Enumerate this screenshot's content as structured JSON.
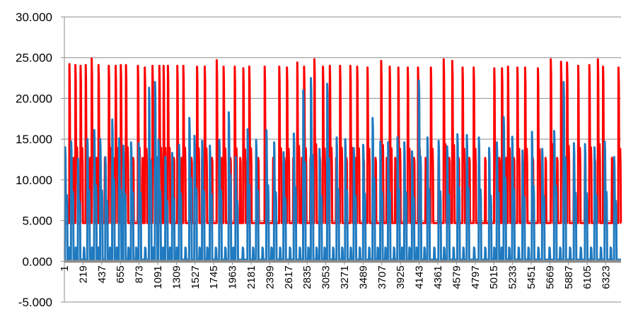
{
  "chart_data": {
    "type": "line",
    "title": "",
    "xlabel": "",
    "ylabel": "",
    "ylim": [
      -5,
      30
    ],
    "xlim": [
      1,
      6500
    ],
    "grid": "horizontal",
    "legend": "none",
    "y_ticks": [
      {
        "value": 30,
        "label": "30.000"
      },
      {
        "value": 25,
        "label": "25.000"
      },
      {
        "value": 20,
        "label": "20.000"
      },
      {
        "value": 15,
        "label": "15.000"
      },
      {
        "value": 10,
        "label": "10.000"
      },
      {
        "value": 5,
        "label": "5.000"
      },
      {
        "value": 0,
        "label": "0.000"
      },
      {
        "value": -5,
        "label": "-5.000"
      }
    ],
    "x_ticks": [
      "1",
      "219",
      "437",
      "655",
      "873",
      "1091",
      "1309",
      "1527",
      "1745",
      "1963",
      "2181",
      "2399",
      "2617",
      "2835",
      "3053",
      "3271",
      "3489",
      "3707",
      "3925",
      "4143",
      "4361",
      "4579",
      "4797",
      "5015",
      "5233",
      "5451",
      "5669",
      "5887",
      "6105",
      "6323"
    ],
    "series": [
      {
        "color": "#ff0000",
        "baseline": 4.7,
        "peaks": [
          [
            60,
            24.2
          ],
          [
            130,
            24.1
          ],
          [
            190,
            24.0
          ],
          [
            250,
            24.1
          ],
          [
            320,
            24.9
          ],
          [
            400,
            24.1
          ],
          [
            520,
            24.0
          ],
          [
            600,
            24.0
          ],
          [
            660,
            24.1
          ],
          [
            720,
            24.1
          ],
          [
            860,
            24.0
          ],
          [
            940,
            23.8
          ],
          [
            1030,
            24.0
          ],
          [
            1110,
            24.0
          ],
          [
            1160,
            24.0
          ],
          [
            1210,
            24.0
          ],
          [
            1320,
            24.0
          ],
          [
            1390,
            24.0
          ],
          [
            1550,
            23.9
          ],
          [
            1640,
            23.9
          ],
          [
            1780,
            24.7
          ],
          [
            1860,
            23.9
          ],
          [
            1990,
            23.9
          ],
          [
            2090,
            23.7
          ],
          [
            2160,
            23.9
          ],
          [
            2340,
            23.9
          ],
          [
            2510,
            23.9
          ],
          [
            2600,
            23.8
          ],
          [
            2720,
            24.4
          ],
          [
            2800,
            23.9
          ],
          [
            2920,
            24.8
          ],
          [
            3020,
            23.9
          ],
          [
            3100,
            24.0
          ],
          [
            3220,
            24.0
          ],
          [
            3340,
            24.0
          ],
          [
            3420,
            23.9
          ],
          [
            3540,
            23.8
          ],
          [
            3700,
            24.6
          ],
          [
            3800,
            23.9
          ],
          [
            3900,
            23.8
          ],
          [
            4010,
            23.8
          ],
          [
            4130,
            23.8
          ],
          [
            4280,
            23.8
          ],
          [
            4430,
            24.8
          ],
          [
            4530,
            24.6
          ],
          [
            4650,
            23.8
          ],
          [
            4780,
            23.8
          ],
          [
            5020,
            23.7
          ],
          [
            5110,
            23.7
          ],
          [
            5180,
            23.9
          ],
          [
            5290,
            23.8
          ],
          [
            5380,
            23.8
          ],
          [
            5530,
            23.7
          ],
          [
            5680,
            24.8
          ],
          [
            5800,
            24.5
          ],
          [
            5870,
            24.4
          ],
          [
            6000,
            24.0
          ],
          [
            6130,
            24.1
          ],
          [
            6230,
            24.8
          ],
          [
            6290,
            23.9
          ],
          [
            6470,
            23.8
          ]
        ]
      },
      {
        "color": "#1f7ac0",
        "baseline": 0.2,
        "peaks": [
          [
            10,
            14.0
          ],
          [
            80,
            14.7
          ],
          [
            160,
            12.6
          ],
          [
            270,
            15.0
          ],
          [
            350,
            16.1
          ],
          [
            420,
            15.0
          ],
          [
            480,
            12.8
          ],
          [
            560,
            17.4
          ],
          [
            640,
            15.1
          ],
          [
            690,
            14.2
          ],
          [
            780,
            14.6
          ],
          [
            870,
            14.5
          ],
          [
            990,
            21.3
          ],
          [
            1060,
            22.0
          ],
          [
            1100,
            14.9
          ],
          [
            1180,
            12.8
          ],
          [
            1260,
            13.3
          ],
          [
            1340,
            14.3
          ],
          [
            1460,
            17.6
          ],
          [
            1520,
            15.4
          ],
          [
            1610,
            14.8
          ],
          [
            1700,
            14.2
          ],
          [
            1810,
            14.9
          ],
          [
            1920,
            18.3
          ],
          [
            2000,
            12.8
          ],
          [
            2140,
            16.2
          ],
          [
            2240,
            14.9
          ],
          [
            2360,
            16.1
          ],
          [
            2450,
            14.6
          ],
          [
            2560,
            13.4
          ],
          [
            2680,
            15.7
          ],
          [
            2790,
            21.0
          ],
          [
            2880,
            22.5
          ],
          [
            2980,
            13.8
          ],
          [
            3070,
            21.8
          ],
          [
            3180,
            15.2
          ],
          [
            3280,
            15.0
          ],
          [
            3380,
            13.9
          ],
          [
            3490,
            14.3
          ],
          [
            3600,
            17.6
          ],
          [
            3690,
            14.7
          ],
          [
            3780,
            14.6
          ],
          [
            3890,
            15.2
          ],
          [
            3970,
            14.6
          ],
          [
            4060,
            13.5
          ],
          [
            4140,
            22.2
          ],
          [
            4240,
            15.2
          ],
          [
            4370,
            14.8
          ],
          [
            4470,
            14.1
          ],
          [
            4590,
            15.6
          ],
          [
            4700,
            15.5
          ],
          [
            4840,
            15.2
          ],
          [
            4960,
            13.9
          ],
          [
            5050,
            14.6
          ],
          [
            5130,
            17.7
          ],
          [
            5230,
            15.3
          ],
          [
            5350,
            13.6
          ],
          [
            5460,
            15.9
          ],
          [
            5580,
            13.8
          ],
          [
            5720,
            16.0
          ],
          [
            5830,
            22.0
          ],
          [
            5950,
            14.5
          ],
          [
            6080,
            14.4
          ],
          [
            6190,
            14.0
          ],
          [
            6310,
            14.7
          ],
          [
            6420,
            12.8
          ]
        ]
      }
    ]
  }
}
